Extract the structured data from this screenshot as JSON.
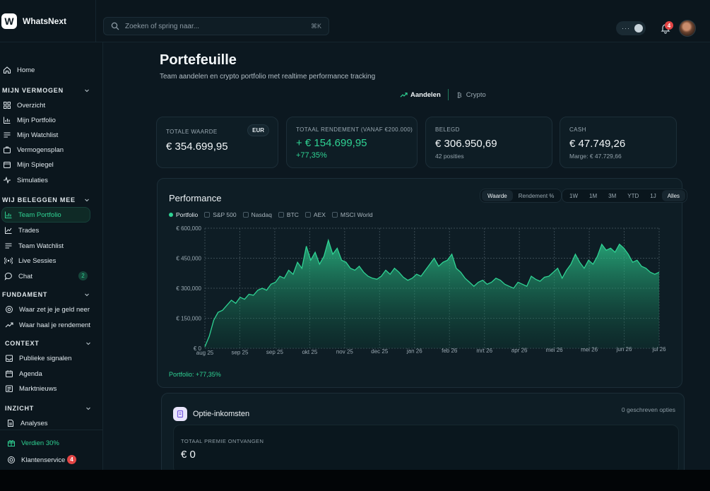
{
  "app": {
    "name": "WhatsNext",
    "logo_letter": "W"
  },
  "search": {
    "placeholder": "Zoeken of spring naar...",
    "shortcut": "⌘K"
  },
  "header": {
    "toggle_dots": "···",
    "notifications_count": "4"
  },
  "sidebar": {
    "home": "Home",
    "sections": [
      {
        "title": "MIJN VERMOGEN",
        "items": [
          "Overzicht",
          "Mijn Portfolio",
          "Mijn Watchlist",
          "Vermogensplan",
          "Mijn Spiegel",
          "Simulaties"
        ]
      },
      {
        "title": "WIJ BELEGGEN MEE",
        "items": [
          "Team Portfolio",
          "Trades",
          "Team Watchlist",
          "Live Sessies",
          "Chat"
        ]
      },
      {
        "title": "FUNDAMENT",
        "items": [
          "Waar zet je je geld neer",
          "Waar haal je rendement"
        ]
      },
      {
        "title": "CONTEXT",
        "items": [
          "Publieke signalen",
          "Agenda",
          "Marktnieuws"
        ]
      },
      {
        "title": "INZICHT",
        "items": [
          "Analyses"
        ]
      }
    ],
    "chat_badge": "2",
    "footer": {
      "earn": "Verdien 30%",
      "support": "Klantenservice",
      "support_badge": "4"
    }
  },
  "page": {
    "title": "Portefeuille",
    "subtitle": "Team aandelen en crypto portfolio met realtime performance tracking",
    "asset_tabs": [
      "Aandelen",
      "Crypto"
    ]
  },
  "stats": {
    "total_value": {
      "label": "TOTALE WAARDE",
      "currency": "EUR",
      "value": "€ 354.699,95"
    },
    "total_return": {
      "label": "TOTAAL RENDEMENT (VANAF €200.000)",
      "value": "+ € 154.699,95",
      "percent": "+77,35%"
    },
    "invested": {
      "label": "BELEGD",
      "value": "€ 306.950,69",
      "sub": "42 posities"
    },
    "cash": {
      "label": "CASH",
      "value": "€ 47.749,26",
      "sub": "Marge: € 47.729,66"
    }
  },
  "performance": {
    "title": "Performance",
    "modes": [
      "Waarde",
      "Rendement %"
    ],
    "ranges": [
      "1W",
      "1M",
      "3M",
      "YTD",
      "1J",
      "Alles"
    ],
    "legend": [
      "Portfolio",
      "S&P 500",
      "Nasdaq",
      "BTC",
      "AEX",
      "MSCI World"
    ],
    "footer": "Portfolio: +77,35%"
  },
  "chart_data": {
    "type": "area",
    "y_tick_labels": [
      "€ 0",
      "€ 150,000",
      "€ 300,000",
      "€ 450,000",
      "€ 600,000"
    ],
    "y_ticks": [
      0,
      150000,
      300000,
      450000,
      600000
    ],
    "ylim": [
      0,
      600000
    ],
    "x_tick_labels": [
      "aug 25",
      "sep 25",
      "sep 25",
      "okt 25",
      "nov 25",
      "dec 25",
      "jan 26",
      "feb 26",
      "mrt 26",
      "apr 26",
      "mei 26",
      "mei 26",
      "jun 26",
      "jul 26"
    ],
    "series": [
      {
        "name": "Portfolio",
        "color": "#2fd293",
        "values": [
          8000,
          60000,
          140000,
          180000,
          190000,
          215000,
          240000,
          225000,
          255000,
          245000,
          270000,
          265000,
          290000,
          300000,
          290000,
          320000,
          330000,
          360000,
          350000,
          390000,
          370000,
          430000,
          400000,
          510000,
          440000,
          480000,
          420000,
          460000,
          540000,
          470000,
          500000,
          440000,
          430000,
          400000,
          390000,
          410000,
          380000,
          360000,
          350000,
          345000,
          360000,
          390000,
          370000,
          400000,
          380000,
          355000,
          340000,
          350000,
          370000,
          360000,
          390000,
          420000,
          450000,
          410000,
          430000,
          440000,
          470000,
          400000,
          380000,
          350000,
          330000,
          310000,
          330000,
          340000,
          320000,
          330000,
          350000,
          340000,
          320000,
          310000,
          300000,
          330000,
          320000,
          310000,
          360000,
          345000,
          335000,
          355000,
          360000,
          380000,
          400000,
          350000,
          390000,
          420000,
          470000,
          430000,
          400000,
          440000,
          420000,
          460000,
          520000,
          490000,
          500000,
          480000,
          520000,
          500000,
          470000,
          430000,
          440000,
          410000,
          400000,
          380000,
          370000,
          380000
        ]
      }
    ]
  },
  "options": {
    "title": "Optie-inkomsten",
    "count": "0 geschreven opties",
    "premium_label": "TOTAAL PREMIE ONTVANGEN",
    "premium_value": "€ 0"
  }
}
